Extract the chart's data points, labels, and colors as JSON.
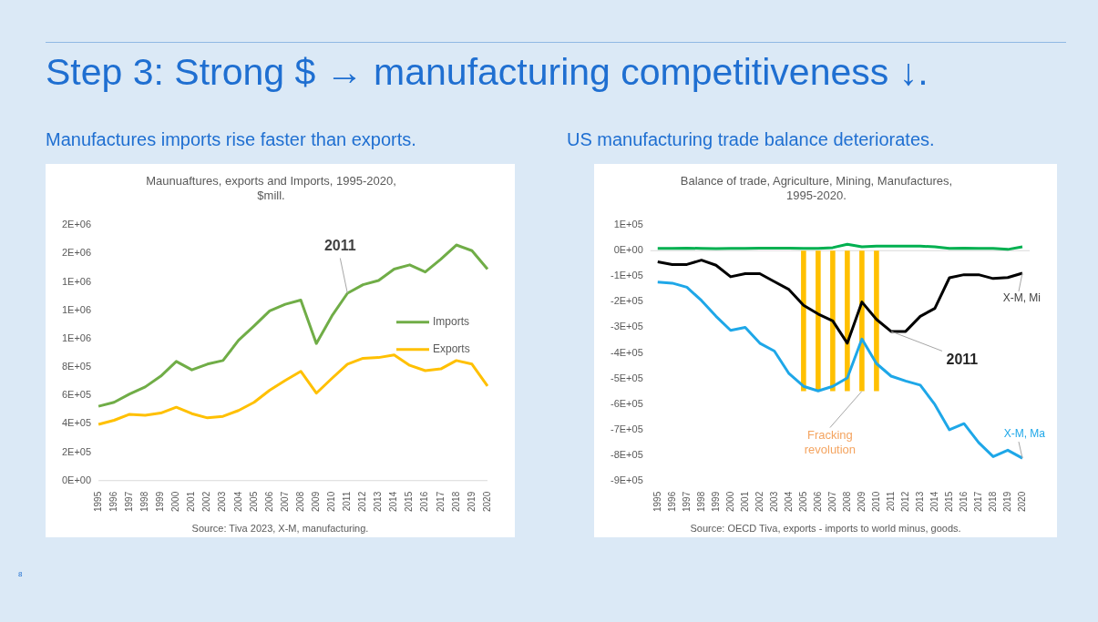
{
  "chart_data": [
    {
      "type": "other",
      "title": "Step 3: Strong $ → manufacturing competitiveness ↓.",
      "annotations": [
        "8"
      ]
    },
    {
      "type": "line",
      "subtitle": "Manufactures imports rise faster than exports.",
      "title": "Maunuaftures, exports and Imports, 1995-2020, $mill.",
      "categories": [
        "1995",
        "1996",
        "1997",
        "1998",
        "1999",
        "2000",
        "2001",
        "2002",
        "2003",
        "2004",
        "2005",
        "2006",
        "2007",
        "2008",
        "2009",
        "2010",
        "2011",
        "2012",
        "2013",
        "2014",
        "2015",
        "2016",
        "2017",
        "2018",
        "2019",
        "2020"
      ],
      "series": [
        {
          "name": "Imports",
          "color": "#70ad47",
          "values": [
            524000,
            552000,
            610000,
            660000,
            736000,
            840000,
            780000,
            821000,
            846000,
            989000,
            1090000,
            1196000,
            1242000,
            1272000,
            966000,
            1160000,
            1320000,
            1380000,
            1410000,
            1490000,
            1520000,
            1470000,
            1560000,
            1660000,
            1620000,
            1490000
          ]
        },
        {
          "name": "Exports",
          "color": "#ffc000",
          "values": [
            396000,
            425000,
            467000,
            460000,
            476000,
            517000,
            472000,
            442000,
            453000,
            494000,
            552000,
            637000,
            706000,
            770000,
            616000,
            720000,
            821000,
            862000,
            867000,
            885000,
            812000,
            775000,
            787000,
            846000,
            821000,
            667000
          ]
        }
      ],
      "ylim": [
        0,
        1800000
      ],
      "yticks": [
        {
          "value": 0,
          "label": "0E+00"
        },
        {
          "value": 200000,
          "label": "2E+05"
        },
        {
          "value": 400000,
          "label": "4E+05"
        },
        {
          "value": 600000,
          "label": "6E+05"
        },
        {
          "value": 800000,
          "label": "8E+05"
        },
        {
          "value": 1000000,
          "label": "1E+06"
        },
        {
          "value": 1200000,
          "label": "1E+06"
        },
        {
          "value": 1400000,
          "label": "1E+06"
        },
        {
          "value": 1600000,
          "label": "2E+06"
        },
        {
          "value": 1800000,
          "label": "2E+06"
        }
      ],
      "legend": "right",
      "annotations": [
        {
          "text": "2011",
          "x": "2011",
          "y": 1320000
        },
        "Source: Tiva 2023, X-M, manufacturing."
      ]
    },
    {
      "type": "line",
      "subtitle": "US manufacturing trade balance deteriorates.",
      "title": "Balance of trade, Agriculture, Mining, Manufactures, 1995-2020.",
      "categories": [
        "1995",
        "1996",
        "1997",
        "1998",
        "1999",
        "2000",
        "2001",
        "2002",
        "2003",
        "2004",
        "2005",
        "2006",
        "2007",
        "2008",
        "2009",
        "2010",
        "2011",
        "2012",
        "2013",
        "2014",
        "2015",
        "2016",
        "2017",
        "2018",
        "2019",
        "2020"
      ],
      "series": [
        {
          "type": "bar",
          "color": "#ffc000",
          "values": [
            null,
            null,
            null,
            null,
            null,
            null,
            null,
            null,
            null,
            null,
            -550000,
            -550000,
            -550000,
            -550000,
            -550000,
            -550000,
            null,
            null,
            null,
            null,
            null,
            null,
            null,
            null,
            null,
            null
          ]
        },
        {
          "color": "#00b050",
          "values": [
            9000,
            9000,
            10000,
            9000,
            8000,
            9000,
            9000,
            10000,
            10000,
            10000,
            9000,
            9000,
            12000,
            25000,
            15000,
            18000,
            18000,
            18000,
            18000,
            15000,
            9000,
            10000,
            9000,
            9000,
            5000,
            15000
          ]
        },
        {
          "name": "X-M, Mi",
          "color": "#000000",
          "values": [
            -44000,
            -54000,
            -54000,
            -37000,
            -57000,
            -102000,
            -90000,
            -90000,
            -121000,
            -152000,
            -214000,
            -248000,
            -275000,
            -362000,
            -201000,
            -269000,
            -316000,
            -316000,
            -257000,
            -226000,
            -106000,
            -94000,
            -94000,
            -109000,
            -105000,
            -88000
          ]
        },
        {
          "name": "X-M, Ma",
          "color": "#1ea7e8",
          "values": [
            -123000,
            -127000,
            -143000,
            -195000,
            -257000,
            -312000,
            -300000,
            -362000,
            -393000,
            -481000,
            -531000,
            -549000,
            -531000,
            -498000,
            -346000,
            -442000,
            -491000,
            -510000,
            -526000,
            -602000,
            -701000,
            -677000,
            -751000,
            -806000,
            -781000,
            -812000
          ]
        }
      ],
      "ylim": [
        -900000,
        100000
      ],
      "yticks": [
        {
          "value": 100000,
          "label": "1E+05"
        },
        {
          "value": 0,
          "label": "0E+00"
        },
        {
          "value": -100000,
          "label": "-1E+05"
        },
        {
          "value": -200000,
          "label": "-2E+05"
        },
        {
          "value": -300000,
          "label": "-3E+05"
        },
        {
          "value": -400000,
          "label": "-4E+05"
        },
        {
          "value": -500000,
          "label": "-5E+05"
        },
        {
          "value": -600000,
          "label": "-6E+05"
        },
        {
          "value": -700000,
          "label": "-7E+05"
        },
        {
          "value": -800000,
          "label": "-8E+05"
        },
        {
          "value": -900000,
          "label": "-9E+05"
        }
      ],
      "annotations": [
        {
          "text": "2011",
          "x": "2011",
          "y": -316000
        },
        {
          "text": "Fracking revolution",
          "x": "2009",
          "y": -550000
        },
        "Source: OECD Tiva, exports - imports to world minus, goods."
      ]
    }
  ]
}
